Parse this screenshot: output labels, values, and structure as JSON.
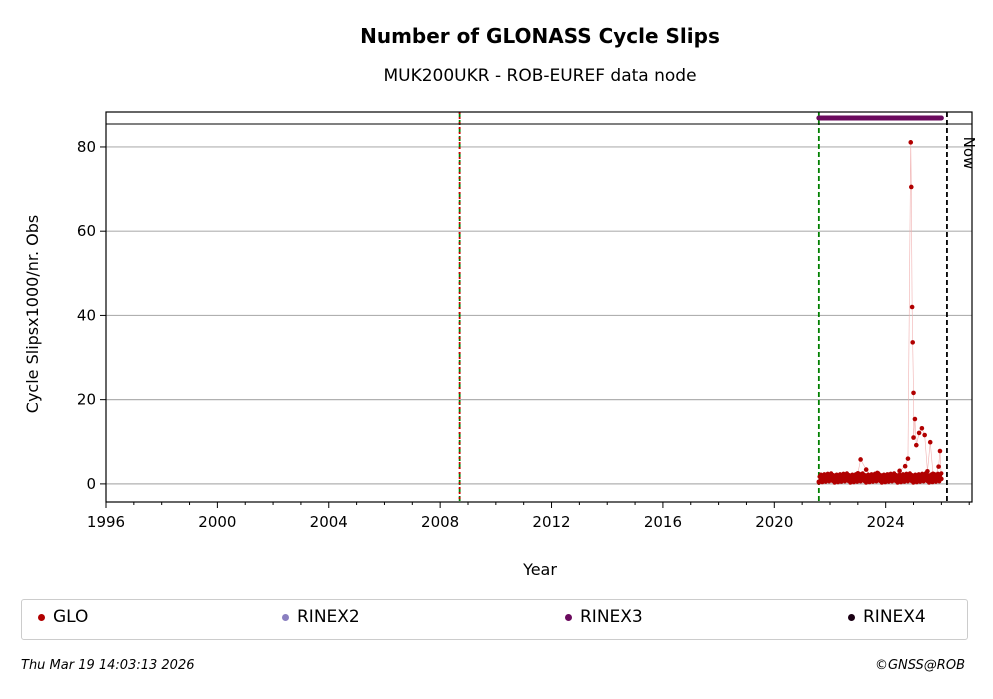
{
  "chart_data": {
    "type": "scatter",
    "title": "Number of GLONASS Cycle Slips",
    "subtitle": "MUK200UKR - ROB-EUREF data node",
    "xlabel": "Year",
    "ylabel": "Cycle Slipsx1000/nr. Obs",
    "xlim": [
      1996,
      2027.1
    ],
    "ylim": [
      -4.3,
      88.3
    ],
    "x_ticks": [
      "1996",
      "2000",
      "2004",
      "2008",
      "2012",
      "2016",
      "2020",
      "2024"
    ],
    "y_ticks": [
      "0",
      "20",
      "40",
      "60",
      "80"
    ],
    "grid": "horizontal",
    "legend_position": "bottom",
    "series": [
      {
        "name": "GLO",
        "color": "#b10000",
        "points": [
          [
            2021.6,
            0.5
          ],
          [
            2021.8,
            0.8
          ],
          [
            2022.0,
            1.0
          ],
          [
            2022.2,
            1.2
          ],
          [
            2022.4,
            0.6
          ],
          [
            2022.6,
            1.5
          ],
          [
            2022.8,
            0.9
          ],
          [
            2023.0,
            2.5
          ],
          [
            2023.1,
            5.8
          ],
          [
            2023.3,
            3.4
          ],
          [
            2023.5,
            1.8
          ],
          [
            2023.7,
            2.6
          ],
          [
            2023.9,
            1.4
          ],
          [
            2024.1,
            2.2
          ],
          [
            2024.3,
            1.9
          ],
          [
            2024.5,
            3.1
          ],
          [
            2024.7,
            4.2
          ],
          [
            2024.8,
            6.0
          ],
          [
            2024.9,
            81.1
          ],
          [
            2024.92,
            70.5
          ],
          [
            2024.95,
            42.0
          ],
          [
            2024.97,
            33.6
          ],
          [
            2025.0,
            21.6
          ],
          [
            2025.0,
            11.0
          ],
          [
            2025.05,
            15.4
          ],
          [
            2025.1,
            9.2
          ],
          [
            2025.2,
            12.1
          ],
          [
            2025.3,
            13.2
          ],
          [
            2025.4,
            11.6
          ],
          [
            2025.5,
            3.0
          ],
          [
            2025.6,
            9.9
          ],
          [
            2025.7,
            2.4
          ],
          [
            2025.8,
            2.1
          ],
          [
            2025.9,
            4.1
          ],
          [
            2025.95,
            7.8
          ],
          [
            2026.0,
            1.2
          ]
        ]
      },
      {
        "name": "RINEX2",
        "color": "#8a7fc0",
        "points": []
      },
      {
        "name": "RINEX3",
        "color": "#6b0a5e",
        "span": [
          2021.6,
          2026.0
        ]
      },
      {
        "name": "RINEX4",
        "color": "#1a0014",
        "points": []
      }
    ],
    "vlines": [
      {
        "x": 2008.7,
        "color": "#008000",
        "style": "dashed"
      },
      {
        "x": 2008.7,
        "color": "#cc0000",
        "style": "dotted"
      },
      {
        "x": 2021.6,
        "color": "#008000",
        "style": "dashed"
      },
      {
        "x": 2026.2,
        "color": "#000000",
        "style": "dashed",
        "label": "Now"
      }
    ]
  },
  "footer": {
    "timestamp": "Thu Mar 19 14:03:13 2026",
    "copyright": "©GNSS@ROB"
  }
}
